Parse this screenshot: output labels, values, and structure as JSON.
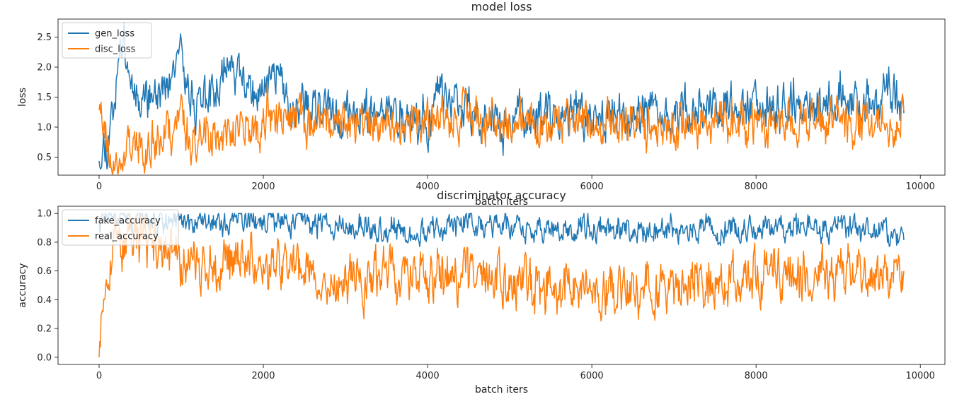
{
  "chart_data": [
    {
      "type": "line",
      "title": "model loss",
      "xlabel": "batch iters",
      "ylabel": "loss",
      "xlim": [
        -500,
        10300
      ],
      "ylim": [
        0.2,
        2.8
      ],
      "xticks": [
        0,
        2000,
        4000,
        6000,
        8000,
        10000
      ],
      "yticks": [
        0.5,
        1.0,
        1.5,
        2.0,
        2.5
      ],
      "legend": "top-left",
      "grid": false,
      "series": [
        {
          "name": "gen_loss",
          "color": "#1f77b4",
          "x": [
            0,
            100,
            200,
            300,
            400,
            500,
            600,
            800,
            1000,
            1100,
            1200,
            1400,
            1600,
            1700,
            1900,
            2200,
            2300,
            2500,
            3000,
            3500,
            4000,
            4100,
            4500,
            5000,
            5500,
            6000,
            6500,
            7000,
            7500,
            8000,
            8500,
            9000,
            9500,
            9600,
            9800
          ],
          "values": [
            0.62,
            0.75,
            1.7,
            2.6,
            1.7,
            1.6,
            1.5,
            1.6,
            2.1,
            1.6,
            1.3,
            1.55,
            2.15,
            1.8,
            1.45,
            2.0,
            1.4,
            1.3,
            1.2,
            1.2,
            1.1,
            1.55,
            1.3,
            1.05,
            1.2,
            1.15,
            1.2,
            1.25,
            1.3,
            1.35,
            1.3,
            1.45,
            1.4,
            1.7,
            1.1
          ]
        },
        {
          "name": "disc_loss",
          "color": "#ff7f0e",
          "x": [
            0,
            50,
            100,
            150,
            200,
            250,
            300,
            400,
            500,
            600,
            700,
            800,
            900,
            1000,
            1100,
            1300,
            1500,
            1700,
            2000,
            2200,
            2500,
            3000,
            3500,
            4000,
            4500,
            5000,
            5500,
            6000,
            6500,
            7000,
            7500,
            8000,
            8500,
            9000,
            9500,
            9800
          ],
          "values": [
            1.45,
            1.2,
            0.75,
            0.45,
            0.27,
            0.35,
            0.55,
            0.75,
            0.7,
            0.8,
            0.75,
            0.9,
            0.9,
            1.3,
            0.7,
            1.0,
            0.75,
            1.0,
            1.0,
            1.1,
            1.1,
            1.1,
            1.15,
            1.05,
            1.15,
            1.05,
            1.2,
            1.1,
            1.05,
            1.05,
            1.1,
            1.05,
            1.1,
            1.0,
            1.05,
            1.2
          ]
        }
      ]
    },
    {
      "type": "line",
      "title": "discriminator accuracy",
      "xlabel": "batch iters",
      "ylabel": "accuracy",
      "xlim": [
        -500,
        10300
      ],
      "ylim": [
        -0.05,
        1.05
      ],
      "xticks": [
        0,
        2000,
        4000,
        6000,
        8000,
        10000
      ],
      "yticks": [
        0.0,
        0.2,
        0.4,
        0.6,
        0.8,
        1.0
      ],
      "legend": "top-left",
      "grid": false,
      "series": [
        {
          "name": "fake_accuracy",
          "color": "#1f77b4",
          "x": [
            0,
            300,
            600,
            1000,
            1500,
            2000,
            2500,
            3000,
            3500,
            4000,
            4500,
            5000,
            5500,
            6000,
            6500,
            7000,
            7500,
            8000,
            8500,
            9000,
            9500,
            9800
          ],
          "values": [
            0.97,
            0.97,
            0.95,
            0.93,
            0.95,
            0.93,
            0.92,
            0.92,
            0.9,
            0.9,
            0.93,
            0.9,
            0.9,
            0.9,
            0.89,
            0.88,
            0.9,
            0.89,
            0.9,
            0.9,
            0.88,
            0.85
          ]
        },
        {
          "name": "real_accuracy",
          "color": "#ff7f0e",
          "x": [
            0,
            30,
            80,
            150,
            300,
            500,
            700,
            900,
            1000,
            1200,
            1500,
            2000,
            2500,
            3000,
            3500,
            4000,
            4500,
            5000,
            5500,
            6000,
            6500,
            7000,
            7500,
            8000,
            8500,
            9000,
            9500,
            9800
          ],
          "values": [
            0.0,
            0.35,
            0.6,
            0.75,
            0.8,
            0.82,
            0.78,
            0.75,
            0.6,
            0.65,
            0.68,
            0.65,
            0.6,
            0.55,
            0.55,
            0.55,
            0.55,
            0.5,
            0.5,
            0.5,
            0.5,
            0.5,
            0.55,
            0.6,
            0.6,
            0.6,
            0.6,
            0.5
          ]
        }
      ]
    }
  ]
}
